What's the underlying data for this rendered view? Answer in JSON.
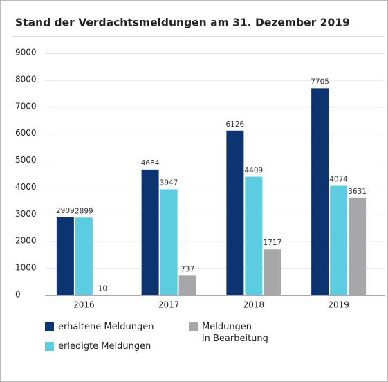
{
  "chart_data": {
    "type": "bar",
    "title": "Stand der Verdachtsmeldungen am 31. Dezember 2019",
    "categories": [
      "2016",
      "2017",
      "2018",
      "2019"
    ],
    "series": [
      {
        "name": "erhaltene Meldungen",
        "color": "#0b3470",
        "values": [
          2909,
          4684,
          6126,
          7705
        ]
      },
      {
        "name": "erledigte Meldungen",
        "color": "#5ccde1",
        "values": [
          2899,
          3947,
          4409,
          4074
        ]
      },
      {
        "name": "Meldungen\nin Bearbeitung",
        "color": "#a7a7a9",
        "values": [
          10,
          737,
          1717,
          3631
        ]
      }
    ],
    "ylim": [
      0,
      9000
    ],
    "yticks": [
      0,
      1000,
      2000,
      3000,
      4000,
      5000,
      6000,
      7000,
      8000,
      9000
    ],
    "grid": true
  }
}
